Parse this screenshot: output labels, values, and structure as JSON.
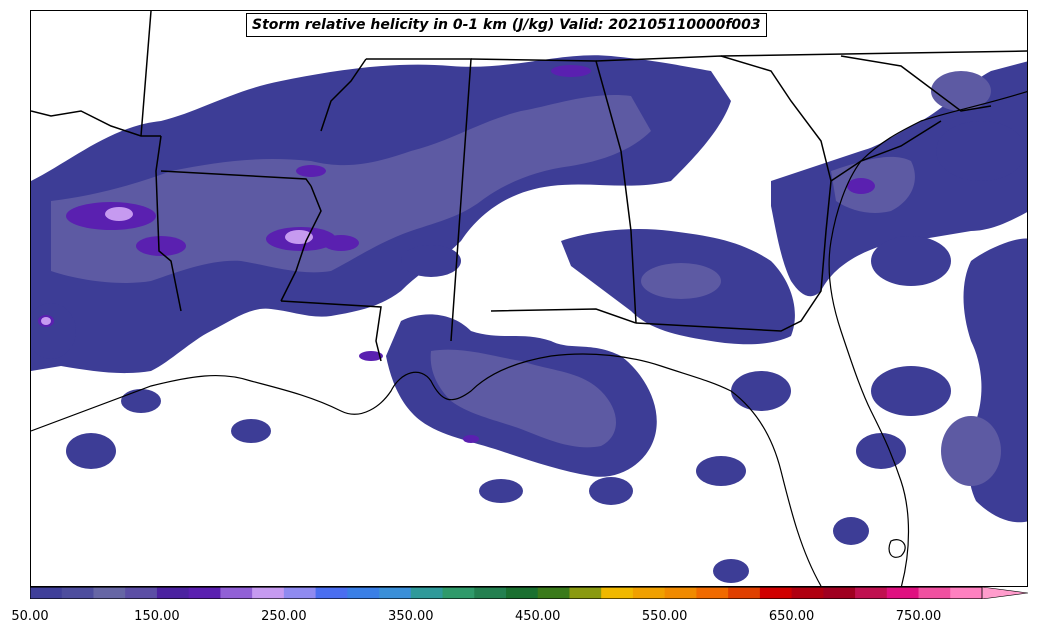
{
  "title": "Storm relative helicity in 0-1 km (J/kg) Valid: 202105110000f003",
  "colorbar": {
    "min": 50,
    "max": 800,
    "step": 25,
    "extend": "max",
    "tick_labels": [
      "50.00",
      "150.00",
      "250.00",
      "350.00",
      "450.00",
      "550.00",
      "650.00",
      "750.00"
    ],
    "colors": [
      "#3f3f9a",
      "#4d4d9e",
      "#6666a5",
      "#5b4ea5",
      "#4b22a0",
      "#5a1fb0",
      "#9160d6",
      "#c69af0",
      "#8f8af0",
      "#4a6ef0",
      "#3a7fe6",
      "#3a8fd8",
      "#2f9a9a",
      "#2f9a6a",
      "#238050",
      "#1a7030",
      "#3a7a1a",
      "#8a9a10",
      "#f0b800",
      "#f0a000",
      "#f08a00",
      "#f06a00",
      "#e04000",
      "#d00000",
      "#b00010",
      "#a00020",
      "#c01050",
      "#e01080",
      "#f050a0",
      "#ff80c0"
    ],
    "extend_color": "#ff9ccc"
  },
  "legend_colors": {
    "shade_low": "#3d3d96",
    "shade_mid": "#5d5aa3",
    "shade_purple": "#5a20b0",
    "shade_light": "#c69af0",
    "border": "#000000"
  }
}
